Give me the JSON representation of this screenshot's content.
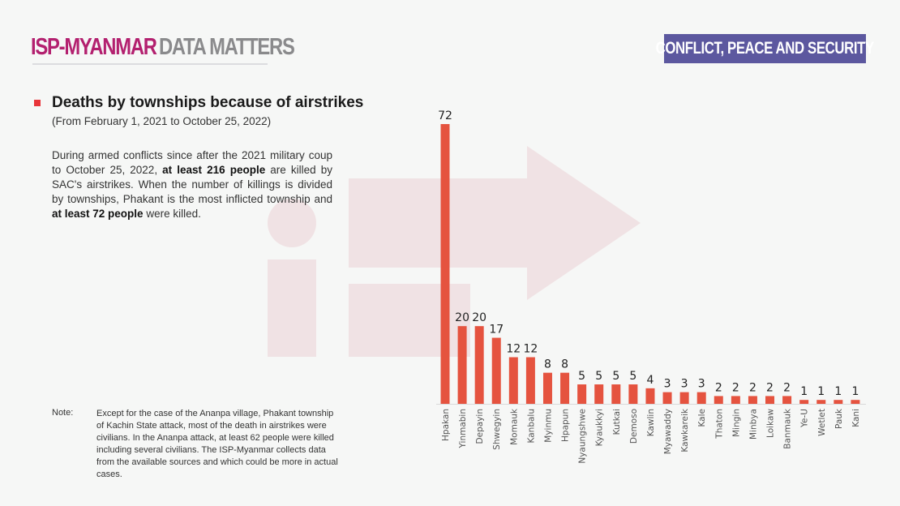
{
  "header": {
    "logo_primary": "ISP-MYANMAR",
    "logo_secondary": "DATA MATTERS",
    "section_badge": "CONFLICT, PEACE AND SECURITY"
  },
  "colors": {
    "bar": "#e5533f",
    "badge": "#5c589f",
    "logo_primary": "#b3206f",
    "logo_secondary": "#8a8a8c"
  },
  "content": {
    "title": "Deaths by townships because of airstrikes",
    "subtitle": "(From February 1, 2021 to October 25, 2022)",
    "desc_1": "During armed conflicts since after the 2021 military coup to October 25, 2022, ",
    "desc_2": "at least 216 people",
    "desc_3": " are killed by SAC's airstrikes. When the number of killings is divided by townships, Phakant is the most inflicted township and ",
    "desc_4": "at least 72 people",
    "desc_5": " were killed.",
    "note_label": "Note:",
    "note": "Except for the case of the Ananpa village, Phakant township of Kachin State attack, most of the death in airstrikes were civilians. In the Ananpa attack, at least 62 people were killed including several civilians. The ISP-Myanmar collects data from the available sources and which could be more in actual cases."
  },
  "chart_data": {
    "type": "bar",
    "categories": [
      "Hpakan",
      "Yinmabin",
      "Depayin",
      "Shwegyin",
      "Momauk",
      "Kanbalu",
      "Myinmu",
      "Hpapun",
      "Nyaungshwe",
      "Kyaukkyi",
      "Kutkai",
      "Demoso",
      "Kawlin",
      "Myawaddy",
      "Kawkareik",
      "Kale",
      "Thaton",
      "Mingin",
      "Minbya",
      "Loikaw",
      "Banmauk",
      "Ye-U",
      "Wetlet",
      "Pauk",
      "Kani"
    ],
    "values": [
      72,
      20,
      20,
      17,
      12,
      12,
      8,
      8,
      5,
      5,
      5,
      5,
      4,
      3,
      3,
      3,
      2,
      2,
      2,
      2,
      2,
      1,
      1,
      1,
      1
    ],
    "ylim": [
      0,
      72
    ],
    "grid": false,
    "data_labels": true
  }
}
